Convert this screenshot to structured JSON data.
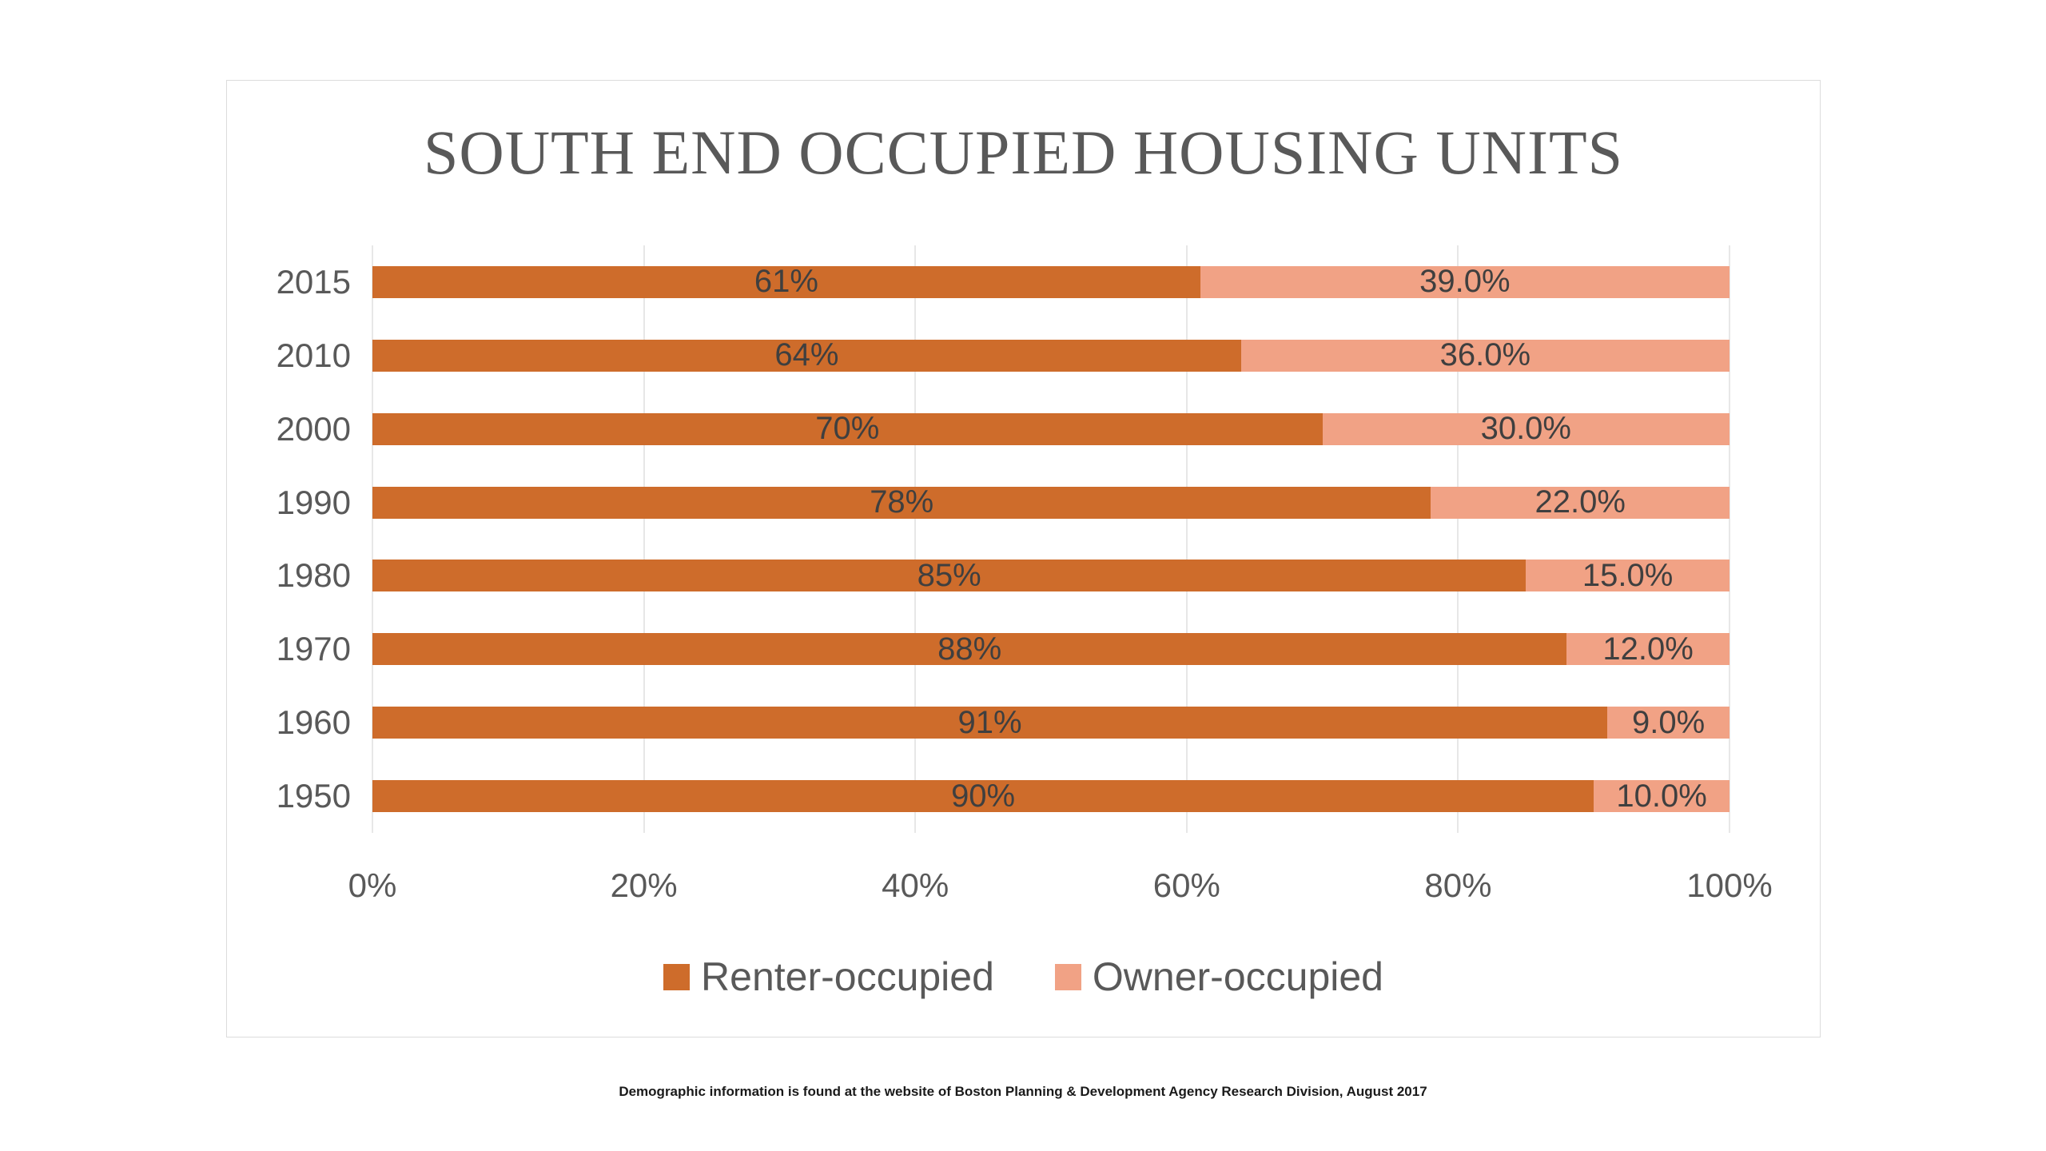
{
  "title": "SOUTH END OCCUPIED HOUSING UNITS",
  "footnote": "Demographic information is found at the website of Boston Planning & Development Agency Research Division, August 2017",
  "colors": {
    "renter": "#ce6c2b",
    "owner": "#f1a285",
    "axis_text": "#595959",
    "data_label": "#3f3f3f",
    "title_text": "#595959",
    "gridline": "#e7e7e7",
    "card_border": "#dcdcdc"
  },
  "chart_data": {
    "type": "bar",
    "orientation": "horizontal",
    "stacked": true,
    "title": "South End Occupied Housing Units",
    "categories": [
      "2015",
      "2010",
      "2000",
      "1990",
      "1980",
      "1970",
      "1960",
      "1950"
    ],
    "series": [
      {
        "name": "Renter-occupied",
        "color": "#ce6c2b",
        "values": [
          61,
          64,
          70,
          78,
          85,
          88,
          91,
          90
        ],
        "labels": [
          "61%",
          "64%",
          "70%",
          "78%",
          "85%",
          "88%",
          "91%",
          "90%"
        ]
      },
      {
        "name": "Owner-occupied",
        "color": "#f1a285",
        "values": [
          39,
          36,
          30,
          22,
          15,
          12,
          9,
          10
        ],
        "labels": [
          "39.0%",
          "36.0%",
          "30.0%",
          "22.0%",
          "15.0%",
          "12.0%",
          "9.0%",
          "10.0%"
        ]
      }
    ],
    "xlabel": "",
    "ylabel": "",
    "x_ticks": [
      "0%",
      "20%",
      "40%",
      "60%",
      "80%",
      "100%"
    ],
    "xlim": [
      0,
      100
    ],
    "grid": true,
    "legend_position": "bottom"
  }
}
